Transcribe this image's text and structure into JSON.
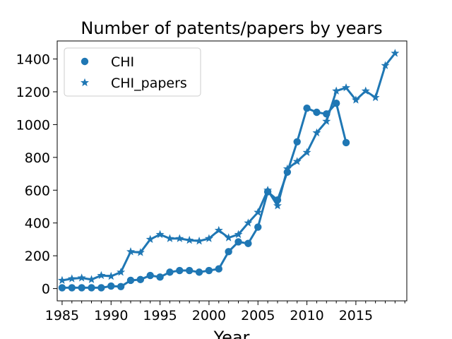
{
  "chart_data": {
    "type": "line",
    "title": "Number of patents/papers by years",
    "xlabel": "Year",
    "ylabel": "",
    "xlim": [
      1984.5,
      2020.2
    ],
    "ylim": [
      -75,
      1510
    ],
    "x_ticks": [
      1985,
      1990,
      1995,
      2000,
      2005,
      2010,
      2015
    ],
    "x_minor_ticks": [
      1985,
      1986,
      1987,
      1988,
      1989,
      1990,
      1991,
      1992,
      1993,
      1994,
      1995,
      1996,
      1997,
      1998,
      1999,
      2000,
      2001,
      2002,
      2003,
      2004,
      2005,
      2006,
      2007,
      2008,
      2009,
      2010,
      2011,
      2012,
      2013,
      2014,
      2015,
      2016,
      2017,
      2018,
      2019,
      2020
    ],
    "y_ticks": [
      0,
      200,
      400,
      600,
      800,
      1000,
      1200,
      1400
    ],
    "legend_position": "top-left",
    "color": "#1f77b4",
    "series": [
      {
        "name": "CHI",
        "marker": "circle",
        "x": [
          1985,
          1986,
          1987,
          1988,
          1989,
          1990,
          1991,
          1992,
          1993,
          1994,
          1995,
          1996,
          1997,
          1998,
          1999,
          2000,
          2001,
          2002,
          2003,
          2004,
          2005,
          2006,
          2007,
          2008,
          2009,
          2010,
          2011,
          2012,
          2013,
          2014
        ],
        "values": [
          5,
          5,
          5,
          5,
          5,
          15,
          12,
          50,
          55,
          80,
          70,
          100,
          110,
          110,
          100,
          110,
          120,
          225,
          285,
          275,
          375,
          590,
          540,
          710,
          895,
          1100,
          1075,
          1065,
          1130,
          890
        ]
      },
      {
        "name": "CHI_papers",
        "marker": "star",
        "x": [
          1985,
          1986,
          1987,
          1988,
          1989,
          1990,
          1991,
          1992,
          1993,
          1994,
          1995,
          1996,
          1997,
          1998,
          1999,
          2000,
          2001,
          2002,
          2003,
          2004,
          2005,
          2006,
          2007,
          2008,
          2009,
          2010,
          2011,
          2012,
          2013,
          2014,
          2015,
          2016,
          2017,
          2018,
          2019
        ],
        "values": [
          50,
          60,
          65,
          55,
          80,
          75,
          100,
          225,
          220,
          300,
          330,
          305,
          305,
          295,
          290,
          305,
          355,
          310,
          330,
          400,
          465,
          600,
          505,
          730,
          775,
          830,
          950,
          1020,
          1205,
          1225,
          1150,
          1205,
          1165,
          1360,
          1435
        ]
      }
    ]
  }
}
